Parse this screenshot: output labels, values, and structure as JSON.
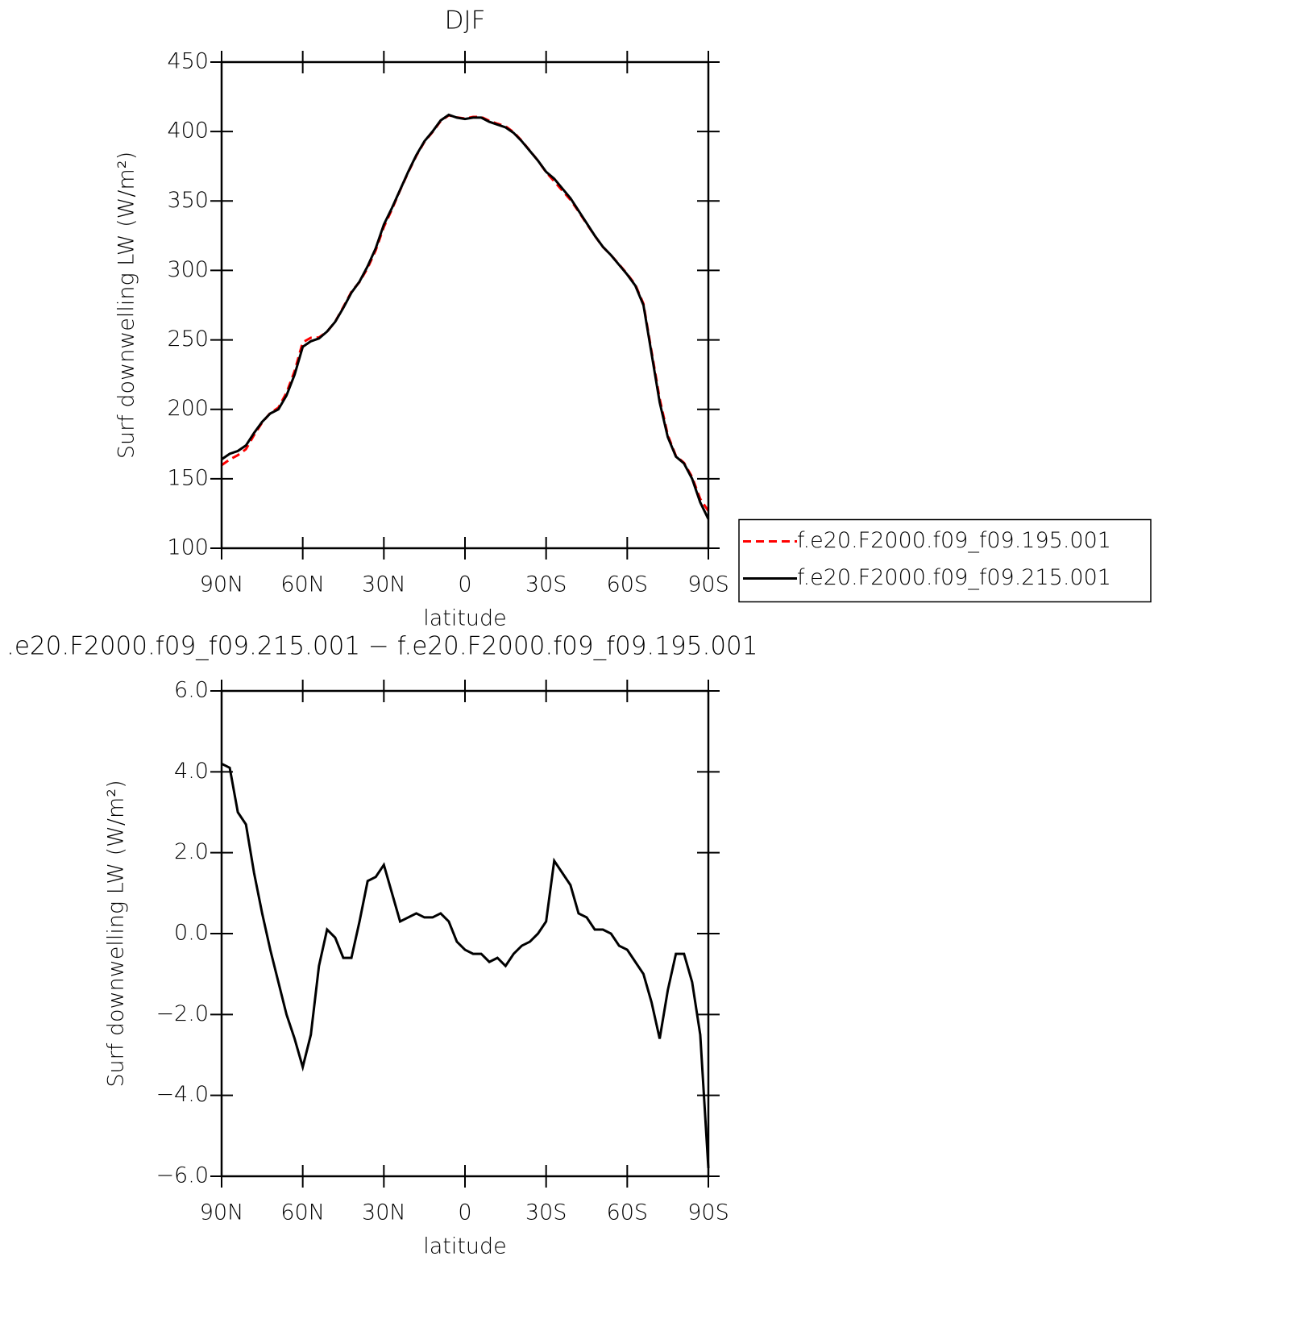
{
  "chart_data": [
    {
      "type": "line",
      "title": "DJF",
      "xlabel": "latitude",
      "ylabel": "Surf downwelling LW (W/m²)",
      "x": [
        90,
        87,
        84,
        81,
        78,
        75,
        72,
        69,
        66,
        63,
        60,
        57,
        54,
        51,
        48,
        45,
        42,
        39,
        36,
        33,
        30,
        27,
        24,
        21,
        18,
        15,
        12,
        9,
        6,
        3,
        0,
        -3,
        -6,
        -9,
        -12,
        -15,
        -18,
        -21,
        -24,
        -27,
        -30,
        -33,
        -36,
        -39,
        -42,
        -45,
        -48,
        -51,
        -54,
        -57,
        -60,
        -63,
        -66,
        -69,
        -72,
        -75,
        -78,
        -81,
        -84,
        -87,
        -90
      ],
      "series": [
        {
          "name": "f.e20.F2000.f09_f09.195.001",
          "color": "#ff0000",
          "line_style": "dashed",
          "values": [
            159.8,
            163.9,
            167,
            171.3,
            181.5,
            190.5,
            197.4,
            201.2,
            212,
            227.6,
            248.3,
            251.5,
            251.8,
            255.9,
            263.1,
            273.6,
            284.6,
            291.7,
            301.7,
            314.6,
            331.3,
            344,
            357.7,
            370.6,
            382.5,
            392.6,
            399.6,
            407.5,
            411.7,
            410.2,
            409.4,
            410.5,
            410.5,
            407.7,
            405.6,
            403.8,
            399.5,
            393.3,
            386.2,
            379,
            370.7,
            364.2,
            357.5,
            350.8,
            342.5,
            333.6,
            324.9,
            316.9,
            311,
            304.3,
            297.4,
            289.7,
            276,
            241.7,
            207.6,
            181.4,
            166.5,
            161.5,
            151.2,
            135.5,
            126.8
          ]
        },
        {
          "name": "f.e20.F2000.f09_f09.215.001",
          "color": "#000000",
          "line_style": "solid",
          "values": [
            164,
            168,
            170,
            174,
            183,
            191,
            197,
            200,
            210,
            225,
            245,
            249,
            251,
            256,
            263,
            273,
            284,
            292,
            303,
            316,
            333,
            345,
            358,
            371,
            383,
            393,
            400,
            408,
            412,
            410,
            409,
            410,
            410,
            407,
            405,
            403,
            399,
            393,
            386,
            379,
            371,
            366,
            359,
            352,
            343,
            334,
            325,
            317,
            311,
            304,
            297,
            289,
            275,
            240,
            205,
            180,
            166,
            161,
            150,
            133,
            121
          ]
        }
      ],
      "xlim": [
        90,
        -90
      ],
      "xticks": [
        {
          "value": 90,
          "label": "90N"
        },
        {
          "value": 60,
          "label": "60N"
        },
        {
          "value": 30,
          "label": "30N"
        },
        0,
        {
          "value": -30,
          "label": "30S"
        },
        {
          "value": -60,
          "label": "60S"
        },
        {
          "value": -90,
          "label": "90S"
        }
      ],
      "ylim": [
        100,
        450
      ],
      "yticks": [
        100,
        150,
        200,
        250,
        300,
        350,
        400,
        450
      ],
      "legend": "right"
    },
    {
      "type": "line",
      "title": ".e20.F2000.f09_f09.215.001 − f.e20.F2000.f09_f09.195.001",
      "xlabel": "latitude",
      "ylabel": "Surf downwelling LW (W/m²)",
      "x": [
        90,
        87,
        84,
        81,
        78,
        75,
        72,
        69,
        66,
        63,
        60,
        57,
        54,
        51,
        48,
        45,
        42,
        39,
        36,
        33,
        30,
        27,
        24,
        21,
        18,
        15,
        12,
        9,
        6,
        3,
        0,
        -3,
        -6,
        -9,
        -12,
        -15,
        -18,
        -21,
        -24,
        -27,
        -30,
        -33,
        -36,
        -39,
        -42,
        -45,
        -48,
        -51,
        -54,
        -57,
        -60,
        -63,
        -66,
        -69,
        -72,
        -75,
        -78,
        -81,
        -84,
        -87,
        -90
      ],
      "color": "#000000",
      "values": [
        4.2,
        4.1,
        3,
        2.7,
        1.5,
        0.5,
        -0.4,
        -1.2,
        -2,
        -2.6,
        -3.3,
        -2.5,
        -0.8,
        0.1,
        -0.1,
        -0.6,
        -0.6,
        0.3,
        1.3,
        1.4,
        1.7,
        1,
        0.3,
        0.4,
        0.5,
        0.4,
        0.4,
        0.5,
        0.3,
        -0.2,
        -0.4,
        -0.5,
        -0.5,
        -0.7,
        -0.6,
        -0.8,
        -0.5,
        -0.3,
        -0.2,
        0,
        0.3,
        1.8,
        1.5,
        1.2,
        0.5,
        0.4,
        0.1,
        0.1,
        0,
        -0.3,
        -0.4,
        -0.7,
        -1,
        -1.7,
        -2.6,
        -1.4,
        -0.5,
        -0.5,
        -1.2,
        -2.5,
        -5.8
      ],
      "xlim": [
        90,
        -90
      ],
      "xticks": [
        {
          "value": 90,
          "label": "90N"
        },
        {
          "value": 60,
          "label": "60N"
        },
        {
          "value": 30,
          "label": "30N"
        },
        0,
        {
          "value": -30,
          "label": "30S"
        },
        {
          "value": -60,
          "label": "60S"
        },
        {
          "value": -90,
          "label": "90S"
        }
      ],
      "ylim": [
        -6,
        6
      ],
      "yticks": [
        {
          "value": -6,
          "label": "−6.0"
        },
        {
          "value": -4,
          "label": "−4.0"
        },
        {
          "value": -2,
          "label": "−2.0"
        },
        {
          "value": 0,
          "label": "0.0"
        },
        {
          "value": 2,
          "label": "2.0"
        },
        {
          "value": 4,
          "label": "4.0"
        },
        {
          "value": 6,
          "label": "6.0"
        }
      ]
    }
  ]
}
